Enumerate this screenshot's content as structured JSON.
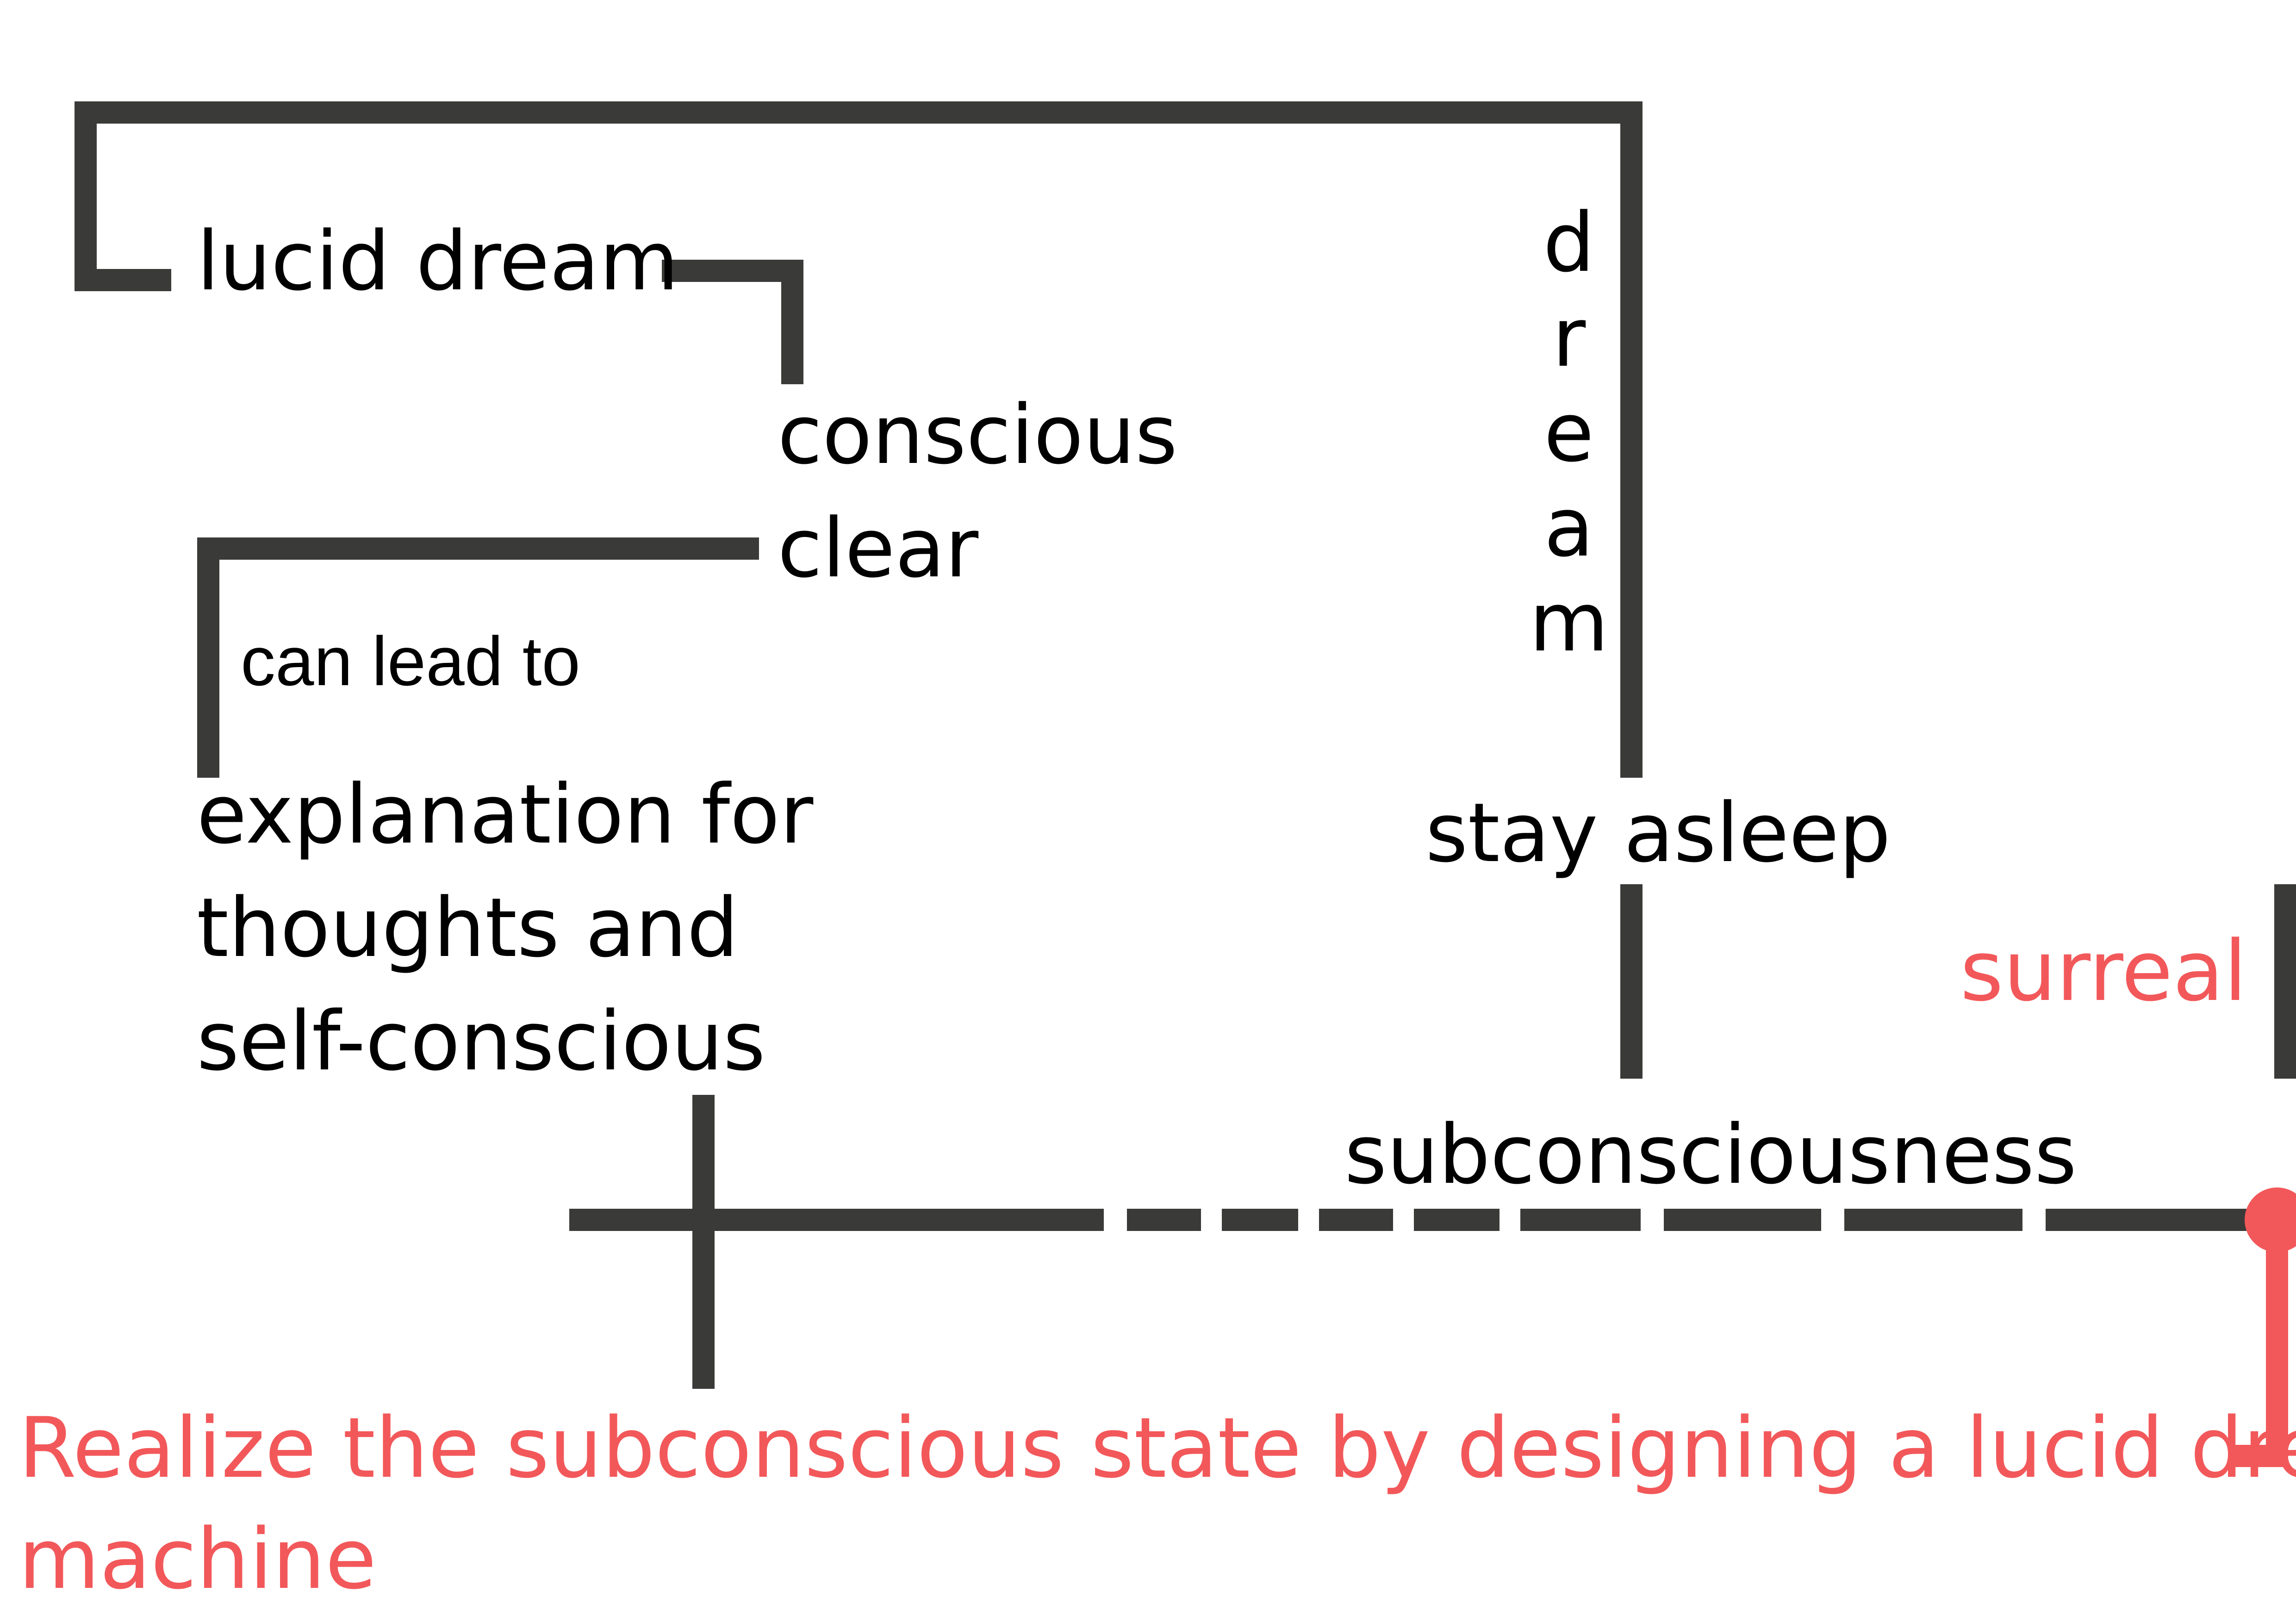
{
  "colors": {
    "line": "#3a3a38",
    "text": "#000000",
    "accent": "#f2585a"
  },
  "nodes": {
    "lucid_dream": "lucid dream",
    "conscious": "conscious",
    "clear": "clear",
    "can_lead_to": "can lead to",
    "explanation_line1": "explanation for",
    "explanation_line2": "thoughts and",
    "explanation_line3": "self-conscious",
    "dream_letters": [
      "d",
      "r",
      "e",
      "a",
      "m"
    ],
    "stay_asleep": "stay asleep",
    "surreal": "surreal",
    "subconsciousness": "subconsciousness"
  },
  "statement": {
    "line1": "Realize the subconscious state by designing a lucid dream",
    "line2": "machine"
  }
}
